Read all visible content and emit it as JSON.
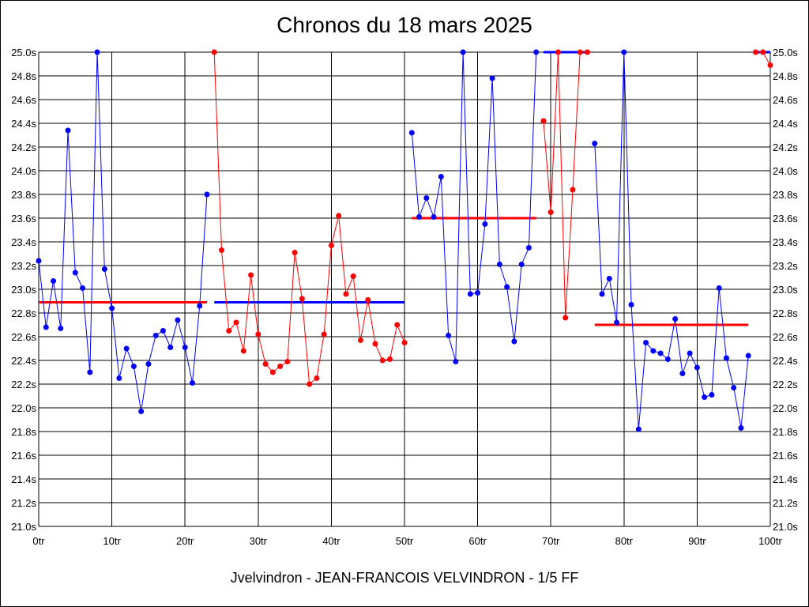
{
  "title": "Chronos du 18 mars 2025",
  "footer": "Jvelvindron - JEAN-FRANCOIS VELVINDRON - 1/5 FF",
  "chart_data": {
    "type": "line",
    "ylim": [
      21.0,
      25.0
    ],
    "xlim": [
      0,
      100
    ],
    "y_tick_labels": [
      "21.0s",
      "21.2s",
      "21.4s",
      "21.6s",
      "21.8s",
      "22.0s",
      "22.2s",
      "22.4s",
      "22.6s",
      "22.8s",
      "23.0s",
      "23.2s",
      "23.4s",
      "23.6s",
      "23.8s",
      "24.0s",
      "24.2s",
      "24.4s",
      "24.6s",
      "24.8s",
      "25.0s"
    ],
    "x_tick_labels": [
      "0tr",
      "10tr",
      "20tr",
      "30tr",
      "40tr",
      "50tr",
      "60tr",
      "70tr",
      "80tr",
      "90tr",
      "100tr"
    ],
    "grid": true,
    "colors": {
      "blue": "#0000ff",
      "red": "#ff0000"
    },
    "segments": [
      {
        "color": "blue",
        "x": [
          0,
          1,
          2,
          3,
          4,
          5,
          6,
          7,
          8,
          9,
          10,
          11,
          12,
          13,
          14,
          15,
          16,
          17,
          18,
          19,
          20,
          21,
          22,
          23
        ],
        "y": [
          23.24,
          22.68,
          23.07,
          22.67,
          24.34,
          23.14,
          23.01,
          22.3,
          25.0,
          23.17,
          22.84,
          22.25,
          22.5,
          22.35,
          21.97,
          22.37,
          22.61,
          22.65,
          22.51,
          22.74,
          22.51,
          22.21,
          22.86,
          23.8
        ]
      },
      {
        "color": "red",
        "x": [
          24,
          25,
          26,
          27,
          28,
          29,
          30,
          31,
          32,
          33,
          34,
          35,
          36,
          37,
          38,
          39,
          40,
          41,
          42,
          43,
          44,
          45,
          46,
          47,
          48,
          49,
          50
        ],
        "y": [
          25.0,
          23.33,
          22.65,
          22.72,
          22.48,
          23.12,
          22.62,
          22.37,
          22.3,
          22.35,
          22.39,
          23.31,
          22.92,
          22.2,
          22.25,
          22.62,
          23.37,
          23.62,
          22.96,
          23.11,
          22.57,
          22.91,
          22.54,
          22.4,
          22.41,
          22.7,
          22.55
        ]
      },
      {
        "color": "blue",
        "x": [
          51,
          52,
          53,
          54,
          55,
          56,
          57,
          58,
          59,
          60,
          61,
          62,
          63,
          64,
          65,
          66,
          67,
          68
        ],
        "y": [
          24.32,
          23.61,
          23.77,
          23.61,
          23.95,
          22.61,
          22.39,
          25.0,
          22.96,
          22.97,
          23.55,
          24.78,
          23.21,
          23.02,
          22.56,
          23.21,
          23.35,
          25.0
        ]
      },
      {
        "color": "red",
        "x": [
          69,
          70,
          71,
          72,
          73,
          74,
          75
        ],
        "y": [
          24.42,
          23.65,
          25.0,
          22.76,
          23.84,
          25.0,
          25.0
        ]
      },
      {
        "color": "blue",
        "x": [
          76,
          77,
          78,
          79,
          80,
          81,
          82,
          83,
          84,
          85,
          86,
          87,
          88,
          89,
          90,
          91,
          92,
          93,
          94,
          95,
          96,
          97
        ],
        "y": [
          24.23,
          22.96,
          23.09,
          22.72,
          25.0,
          22.87,
          21.82,
          22.55,
          22.48,
          22.46,
          22.41,
          22.75,
          22.29,
          22.46,
          22.34,
          22.09,
          22.11,
          23.01,
          22.42,
          22.17,
          21.83,
          22.44
        ]
      },
      {
        "color": "red",
        "x": [
          98,
          99,
          100
        ],
        "y": [
          25.0,
          25.0,
          24.89
        ]
      }
    ],
    "averages": [
      {
        "color": "red",
        "x_from": 0,
        "x_to": 23,
        "y": 22.89
      },
      {
        "color": "blue",
        "x_from": 24,
        "x_to": 50,
        "y": 22.89
      },
      {
        "color": "red",
        "x_from": 51,
        "x_to": 68,
        "y": 23.6
      },
      {
        "color": "blue",
        "x_from": 69,
        "x_to": 75,
        "y": 25.0
      },
      {
        "color": "red",
        "x_from": 76,
        "x_to": 97,
        "y": 22.7
      },
      {
        "color": "blue",
        "x_from": 98,
        "x_to": 100,
        "y": 25.0
      }
    ]
  }
}
